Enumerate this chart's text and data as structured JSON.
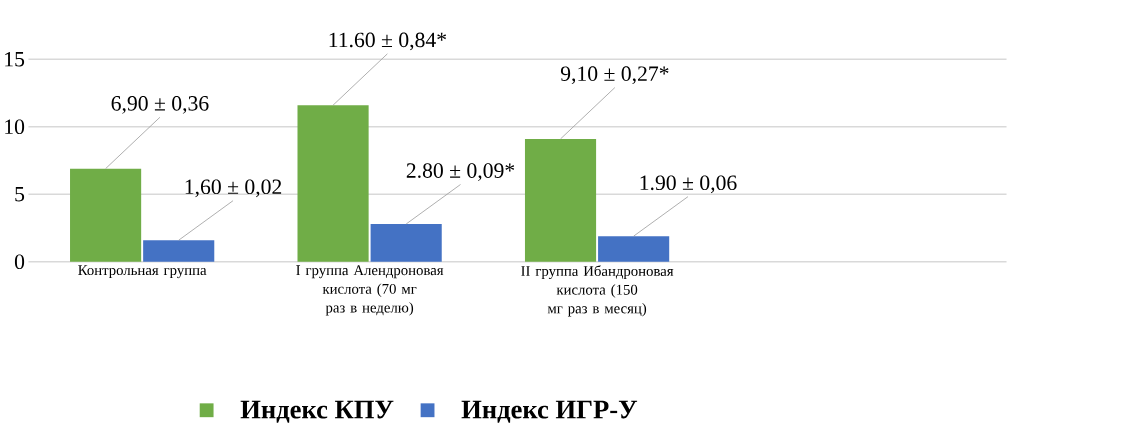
{
  "chart_data": {
    "type": "bar",
    "categories": [
      "Контрольная группа",
      "I группа Алендроновая кислота (70 мг раз в неделю)",
      "II группа Ибандроновая кислота (150 мг раз в месяц)"
    ],
    "series": [
      {
        "name": "Индекс КПУ",
        "color": "#70ad47",
        "values": [
          6.9,
          11.6,
          9.1
        ],
        "value_labels": [
          "6,90 ± 0,36",
          "11.60 ± 0,84*",
          "9,10 ± 0,27*"
        ]
      },
      {
        "name": "Индекс ИГР-У",
        "color": "#4472c4",
        "values": [
          1.6,
          2.8,
          1.9
        ],
        "value_labels": [
          "1,60 ± 0,02",
          "2.80 ± 0,09*",
          "1.90 ± 0,06"
        ]
      }
    ],
    "ylim": [
      0,
      15
    ],
    "yticks": [
      0,
      5,
      10,
      15
    ],
    "grid": "y",
    "legend": "bottom"
  }
}
